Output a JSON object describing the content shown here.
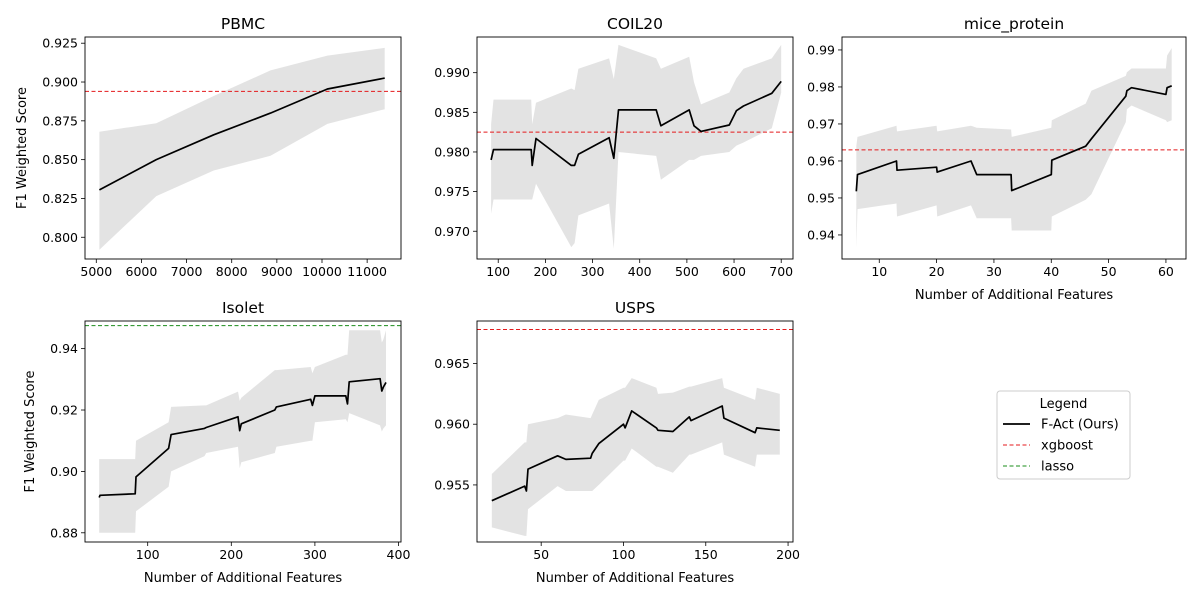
{
  "figure": {
    "legend_title": "Legend",
    "legend_position": "bottom-right empty panel"
  },
  "colors": {
    "f_act": "#000000",
    "band": "#d9d9d9",
    "xgboost": "#e41a1c",
    "lasso": "#1a8c1a"
  },
  "legend": [
    {
      "label": "F-Act (Ours)",
      "style": "solid",
      "color": "#000000"
    },
    {
      "label": "xgboost",
      "style": "dashed",
      "color": "#e41a1c"
    },
    {
      "label": "lasso",
      "style": "dashed",
      "color": "#1a8c1a"
    }
  ],
  "chart_data": [
    {
      "type": "line",
      "title": "PBMC",
      "xlabel": "",
      "ylabel": "F1 Weighted Score",
      "xlim": [
        4750,
        11750
      ],
      "ylim": [
        0.786,
        0.929
      ],
      "xticks": [
        5000,
        6000,
        7000,
        8000,
        9000,
        10000,
        11000
      ],
      "xtick_labels": [
        "5000",
        "6000",
        "7000",
        "8000",
        "9000",
        "10000",
        "11000"
      ],
      "yticks": [
        0.8,
        0.825,
        0.85,
        0.875,
        0.9,
        0.925
      ],
      "ytick_labels": [
        "0.800",
        "0.825",
        "0.850",
        "0.875",
        "0.900",
        "0.925"
      ],
      "series": [
        {
          "name": "F-Act (Ours)",
          "x": [
            5070,
            6330,
            7600,
            8860,
            10120,
            11390
          ],
          "y": [
            0.8305,
            0.85,
            0.866,
            0.88,
            0.8955,
            0.9025
          ],
          "lower": [
            0.792,
            0.8265,
            0.843,
            0.8525,
            0.873,
            0.8825
          ],
          "upper": [
            0.868,
            0.8735,
            0.891,
            0.9075,
            0.917,
            0.922
          ]
        }
      ],
      "baselines": [
        {
          "name": "xgboost",
          "y": 0.894
        }
      ]
    },
    {
      "type": "line",
      "title": "COIL20",
      "xlabel": "",
      "ylabel": "",
      "xlim": [
        55,
        725
      ],
      "ylim": [
        0.9665,
        0.9945
      ],
      "xticks": [
        100,
        200,
        300,
        400,
        500,
        600,
        700
      ],
      "xtick_labels": [
        "100",
        "200",
        "300",
        "400",
        "500",
        "600",
        "700"
      ],
      "yticks": [
        0.97,
        0.975,
        0.98,
        0.985,
        0.99
      ],
      "ytick_labels": [
        "0.970",
        "0.975",
        "0.980",
        "0.985",
        "0.990"
      ],
      "series": [
        {
          "name": "F-Act (Ours)",
          "x": [
            85,
            90,
            170,
            172,
            180,
            255,
            262,
            270,
            335,
            345,
            355,
            435,
            445,
            505,
            515,
            530,
            590,
            605,
            620,
            680,
            700
          ],
          "y": [
            0.979,
            0.9803,
            0.9803,
            0.9783,
            0.9817,
            0.9783,
            0.9783,
            0.9797,
            0.9818,
            0.9792,
            0.9853,
            0.9853,
            0.9833,
            0.9853,
            0.9833,
            0.9826,
            0.9834,
            0.9852,
            0.9858,
            0.9874,
            0.9889
          ],
          "lower": [
            0.9722,
            0.974,
            0.974,
            0.974,
            0.976,
            0.968,
            0.9685,
            0.972,
            0.9735,
            0.9678,
            0.98,
            0.9795,
            0.9765,
            0.979,
            0.979,
            0.9795,
            0.98,
            0.9808,
            0.9812,
            0.983,
            0.9875
          ],
          "upper": [
            0.9835,
            0.9866,
            0.9866,
            0.9835,
            0.9862,
            0.988,
            0.9878,
            0.9905,
            0.9918,
            0.9892,
            0.9935,
            0.9918,
            0.9905,
            0.992,
            0.9888,
            0.986,
            0.9875,
            0.9893,
            0.9905,
            0.9918,
            0.9935
          ]
        }
      ],
      "baselines": [
        {
          "name": "xgboost",
          "y": 0.9825
        }
      ]
    },
    {
      "type": "line",
      "title": "mice_protein",
      "xlabel": "Number of Additional Features",
      "ylabel": "",
      "xlim": [
        3.5,
        63.5
      ],
      "ylim": [
        0.9335,
        0.9935
      ],
      "xticks": [
        10,
        20,
        30,
        40,
        50,
        60
      ],
      "xtick_labels": [
        "10",
        "20",
        "30",
        "40",
        "50",
        "60"
      ],
      "yticks": [
        0.94,
        0.95,
        0.96,
        0.97,
        0.98,
        0.99
      ],
      "ytick_labels": [
        "0.94",
        "0.95",
        "0.96",
        "0.97",
        "0.98",
        "0.99"
      ],
      "series": [
        {
          "name": "F-Act (Ours)",
          "x": [
            6,
            6.2,
            13,
            13.1,
            20,
            20.1,
            26,
            27,
            33,
            33.1,
            40,
            40.1,
            46,
            47,
            53,
            53.2,
            54,
            60,
            60.2,
            61
          ],
          "y": [
            0.9518,
            0.9563,
            0.96,
            0.9575,
            0.9583,
            0.957,
            0.96,
            0.9563,
            0.9563,
            0.952,
            0.9563,
            0.9602,
            0.964,
            0.966,
            0.9775,
            0.979,
            0.9798,
            0.978,
            0.9798,
            0.9803
          ],
          "lower": [
            0.9365,
            0.947,
            0.9485,
            0.945,
            0.948,
            0.945,
            0.948,
            0.9445,
            0.9445,
            0.9412,
            0.9412,
            0.945,
            0.9495,
            0.951,
            0.9705,
            0.974,
            0.975,
            0.971,
            0.9705,
            0.971
          ],
          "upper": [
            0.964,
            0.9665,
            0.9695,
            0.968,
            0.9695,
            0.968,
            0.9695,
            0.969,
            0.9685,
            0.9665,
            0.969,
            0.971,
            0.9755,
            0.979,
            0.983,
            0.984,
            0.985,
            0.985,
            0.9885,
            0.9905
          ]
        }
      ],
      "baselines": [
        {
          "name": "xgboost",
          "y": 0.963
        }
      ]
    },
    {
      "type": "line",
      "title": "Isolet",
      "xlabel": "Number of Additional Features",
      "ylabel": "F1 Weighted Score",
      "xlim": [
        25,
        403
      ],
      "ylim": [
        0.877,
        0.949
      ],
      "xticks": [
        100,
        200,
        300,
        400
      ],
      "xtick_labels": [
        "100",
        "200",
        "300",
        "400"
      ],
      "yticks": [
        0.88,
        0.9,
        0.92,
        0.94
      ],
      "ytick_labels": [
        "0.88",
        "0.90",
        "0.92",
        "0.94"
      ],
      "series": [
        {
          "name": "F-Act (Ours)",
          "x": [
            42,
            43,
            85,
            86,
            125,
            128,
            168,
            170,
            208,
            210,
            212,
            252,
            254,
            295,
            297,
            300,
            337,
            339,
            341,
            378,
            380,
            382,
            385
          ],
          "y": [
            0.8915,
            0.8922,
            0.8927,
            0.8982,
            0.9075,
            0.912,
            0.914,
            0.9143,
            0.9178,
            0.9133,
            0.9155,
            0.92,
            0.921,
            0.9235,
            0.9215,
            0.9246,
            0.9246,
            0.922,
            0.9292,
            0.9302,
            0.9262,
            0.9275,
            0.929
          ],
          "lower": [
            0.88,
            0.88,
            0.88,
            0.887,
            0.895,
            0.9,
            0.905,
            0.906,
            0.908,
            0.901,
            0.903,
            0.906,
            0.908,
            0.91,
            0.91,
            0.916,
            0.917,
            0.916,
            0.919,
            0.915,
            0.913,
            0.914,
            0.915
          ],
          "upper": [
            0.904,
            0.904,
            0.904,
            0.91,
            0.916,
            0.921,
            0.9215,
            0.9215,
            0.926,
            0.923,
            0.924,
            0.933,
            0.933,
            0.934,
            0.932,
            0.934,
            0.938,
            0.938,
            0.946,
            0.946,
            0.942,
            0.943,
            0.946
          ]
        }
      ],
      "baselines": [
        {
          "name": "lasso",
          "y": 0.9475
        }
      ]
    },
    {
      "type": "line",
      "title": "USPS",
      "xlabel": "Number of Additional Features",
      "ylabel": "",
      "xlim": [
        11,
        203
      ],
      "ylim": [
        0.9503,
        0.9685
      ],
      "xticks": [
        50,
        100,
        150,
        200
      ],
      "xtick_labels": [
        "50",
        "100",
        "150",
        "200"
      ],
      "yticks": [
        0.955,
        0.96,
        0.965
      ],
      "ytick_labels": [
        "0.955",
        "0.960",
        "0.965"
      ],
      "series": [
        {
          "name": "F-Act (Ours)",
          "x": [
            20,
            40,
            41,
            42,
            60,
            65,
            80,
            81,
            85,
            100,
            101,
            105,
            120,
            121,
            130,
            140,
            141,
            160,
            161,
            180,
            181,
            195
          ],
          "y": [
            0.9537,
            0.9549,
            0.9545,
            0.9563,
            0.9574,
            0.9571,
            0.9572,
            0.9576,
            0.9584,
            0.96,
            0.9597,
            0.9611,
            0.9597,
            0.9595,
            0.9594,
            0.9606,
            0.9603,
            0.9615,
            0.9605,
            0.9593,
            0.9597,
            0.9595
          ],
          "lower": [
            0.9515,
            0.9508,
            0.9508,
            0.953,
            0.9549,
            0.9545,
            0.9545,
            0.9545,
            0.955,
            0.957,
            0.957,
            0.958,
            0.9565,
            0.9565,
            0.956,
            0.9575,
            0.9575,
            0.9585,
            0.9575,
            0.9565,
            0.9575,
            0.9575
          ],
          "upper": [
            0.9559,
            0.9585,
            0.9585,
            0.96,
            0.9605,
            0.9608,
            0.9605,
            0.9608,
            0.962,
            0.963,
            0.963,
            0.9638,
            0.963,
            0.9625,
            0.9626,
            0.9631,
            0.9631,
            0.9638,
            0.963,
            0.962,
            0.963,
            0.9625
          ]
        }
      ],
      "baselines": [
        {
          "name": "xgboost",
          "y": 0.9678
        }
      ]
    }
  ]
}
